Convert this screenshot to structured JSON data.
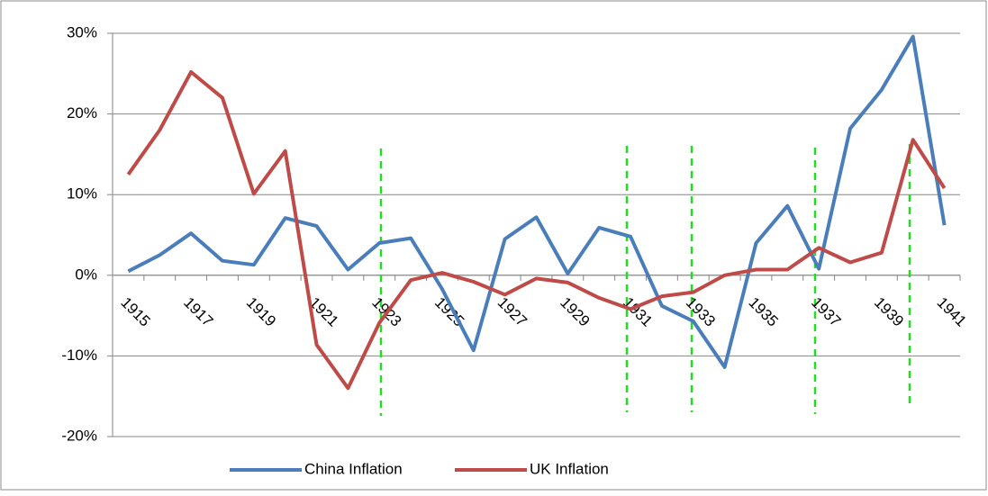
{
  "chart_data": {
    "type": "line",
    "categories": [
      "1915",
      null,
      "1917",
      null,
      "1919",
      null,
      "1921",
      null,
      "1923",
      null,
      "1925",
      null,
      "1927",
      null,
      "1929",
      null,
      "1931",
      null,
      "1933",
      null,
      "1935",
      null,
      "1937",
      null,
      "1939",
      null,
      "1941"
    ],
    "series": [
      {
        "name": "China Inflation",
        "color": "#4a7ebb",
        "values": [
          0.5,
          2.5,
          5.2,
          1.8,
          1.3,
          7.1,
          6.1,
          0.7,
          4.0,
          4.6,
          -1.7,
          -9.3,
          4.5,
          7.2,
          0.2,
          5.9,
          4.8,
          -3.8,
          -5.7,
          -11.4,
          4.0,
          8.6,
          0.8,
          18.2,
          23.0,
          29.6,
          6.2
        ]
      },
      {
        "name": "UK Inflation",
        "color": "#be4b48",
        "values": [
          12.5,
          18.0,
          25.2,
          22.0,
          10.1,
          15.4,
          -8.6,
          -14.0,
          -5.9,
          -0.6,
          0.3,
          -0.8,
          -2.4,
          -0.4,
          -0.9,
          -2.8,
          -4.2,
          -2.6,
          -2.1,
          0.0,
          0.7,
          0.7,
          3.4,
          1.6,
          2.8,
          16.8,
          10.8
        ]
      }
    ],
    "ylim": [
      -20,
      30
    ],
    "yticks": [
      {
        "value": -20,
        "label": "-20%"
      },
      {
        "value": -10,
        "label": "-10%"
      },
      {
        "value": 0,
        "label": "0%"
      },
      {
        "value": 10,
        "label": "10%"
      },
      {
        "value": 20,
        "label": "20%"
      },
      {
        "value": 30,
        "label": "30%"
      }
    ],
    "grid": true,
    "legend": "bottom"
  }
}
